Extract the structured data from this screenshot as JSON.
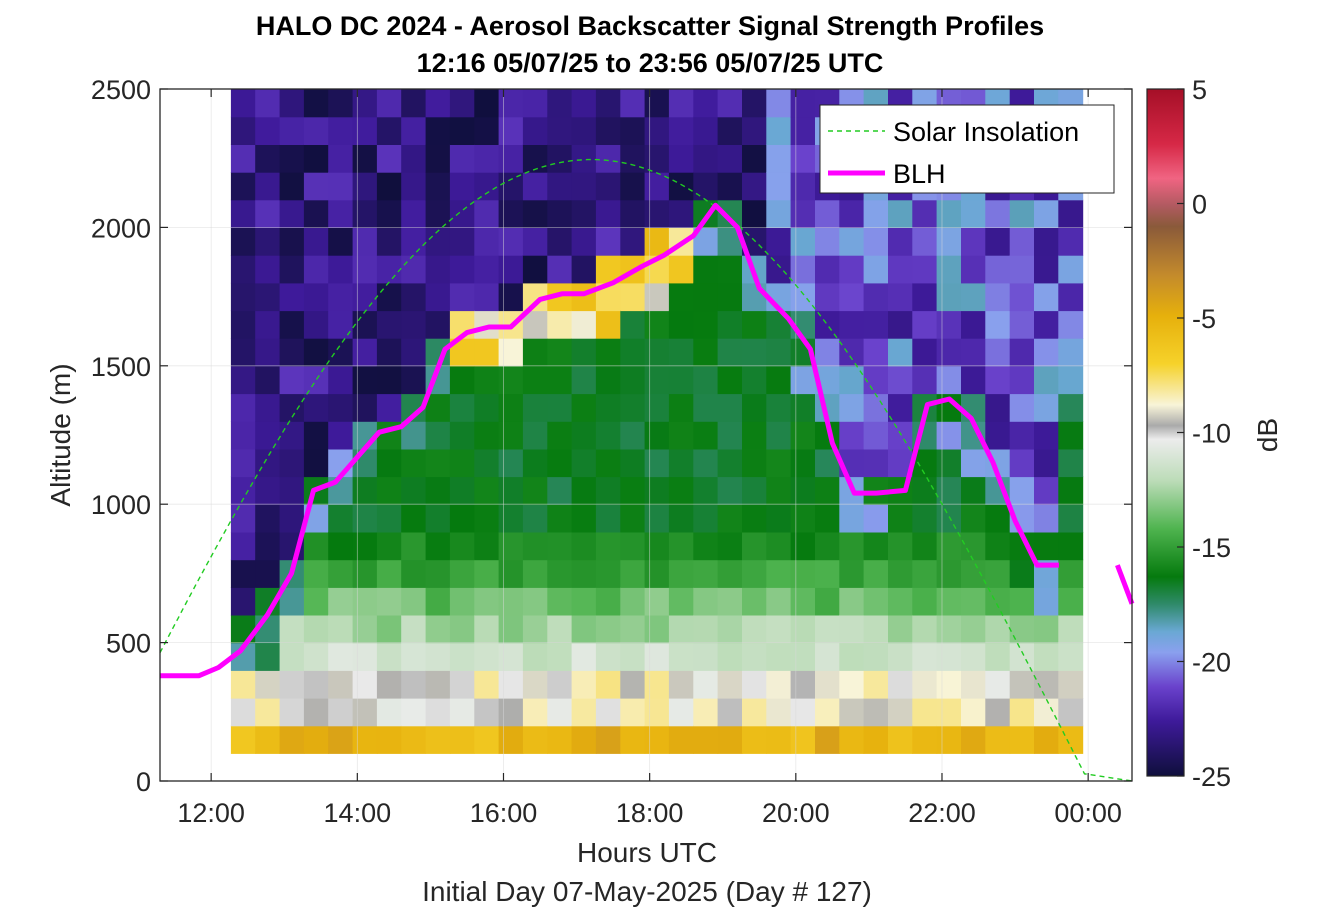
{
  "chart_data": {
    "type": "heatmap",
    "title": "HALO DC 2024 - Aerosol Backscatter Signal Strength Profiles",
    "subtitle": "12:16 05/07/25 to 23:56 05/07/25  UTC",
    "xlabel": "Hours UTC",
    "ylabel": "Altitude (m)",
    "footer": "Initial Day 07-May-2025 (Day # 127)",
    "xlim": [
      11.3,
      24.6
    ],
    "ylim": [
      0,
      2500
    ],
    "x_ticks": [
      12,
      14,
      16,
      18,
      20,
      22,
      24
    ],
    "x_tick_labels": [
      "12:00",
      "14:00",
      "16:00",
      "18:00",
      "20:00",
      "22:00",
      "00:00"
    ],
    "y_ticks": [
      0,
      500,
      1000,
      1500,
      2000,
      2500
    ],
    "y_tick_labels": [
      "0",
      "500",
      "1000",
      "1500",
      "2000",
      "2500"
    ],
    "grid": true,
    "colorbar": {
      "label": "dB",
      "range": [
        -25,
        5
      ],
      "ticks": [
        5,
        0,
        -5,
        -10,
        -15,
        -20,
        -25
      ],
      "tick_labels": [
        "5",
        "0",
        "-5",
        "-10",
        "-15",
        "-20",
        "-25"
      ]
    },
    "legend": {
      "position": "top-right",
      "entries": [
        {
          "label": "Solar Insolation",
          "color": "#22cc22",
          "style": "dashed"
        },
        {
          "label": "BLH",
          "color": "#ff00ff",
          "style": "solid"
        }
      ]
    },
    "heatmap": {
      "time_start": 12.27,
      "time_end": 23.93,
      "bin_hours": 0.333,
      "alt_start": 100,
      "alt_end": 2500,
      "alt_bin": 100,
      "description_of_values": "dB signal strength per time/altitude bin"
    },
    "series": [
      {
        "name": "BLH",
        "x": [
          11.3,
          11.5,
          11.83,
          12.1,
          12.4,
          12.77,
          13.1,
          13.4,
          13.7,
          14.0,
          14.3,
          14.6,
          14.9,
          15.2,
          15.5,
          15.8,
          16.1,
          16.5,
          16.8,
          17.1,
          17.5,
          17.9,
          18.2,
          18.6,
          18.9,
          19.2,
          19.5,
          19.9,
          20.2,
          20.5,
          20.8,
          21.1,
          21.5,
          21.8,
          22.1,
          22.4,
          22.7,
          23.0,
          23.3,
          23.6,
          23.9,
          24.2
        ],
        "y": [
          380,
          380,
          380,
          410,
          470,
          600,
          750,
          1050,
          1080,
          1170,
          1260,
          1280,
          1350,
          1560,
          1620,
          1640,
          1640,
          1740,
          1760,
          1760,
          1800,
          1860,
          1900,
          1970,
          2080,
          2000,
          1780,
          1670,
          1560,
          1220,
          1040,
          1040,
          1050,
          1360,
          1380,
          1310,
          1150,
          940,
          780,
          780,
          null,
          null
        ],
        "segment2_x": [
          24.4,
          24.6
        ],
        "segment2_y": [
          780,
          640
        ]
      },
      {
        "name": "Solar Insolation",
        "peak_x": 17.2,
        "peak_y": 2245,
        "zero_x": 24.0,
        "shape": "half-sine"
      }
    ]
  }
}
